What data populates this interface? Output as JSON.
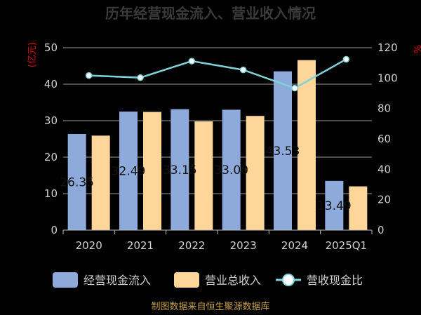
{
  "header": {
    "title": "历年经营现金流入、营业收入情况"
  },
  "footer": {
    "source": "制图数据来自恒生聚源数据库"
  },
  "chart_data": {
    "type": "bar",
    "title": "历年经营现金流入、营业收入情况",
    "categories": [
      "2020",
      "2021",
      "2022",
      "2023",
      "2024",
      "2025Q1"
    ],
    "series": [
      {
        "name": "经营现金流入",
        "type": "bar",
        "axis": "left",
        "color": "#8eaadb",
        "values": [
          26.35,
          32.49,
          33.15,
          33.0,
          43.53,
          13.49
        ]
      },
      {
        "name": "营业总收入",
        "type": "bar",
        "axis": "left",
        "color": "#ffd699",
        "values": [
          25.9,
          32.4,
          29.8,
          31.3,
          46.6,
          12.0
        ]
      },
      {
        "name": "营收现金比",
        "type": "line",
        "axis": "right",
        "color": "#7fd3d8",
        "values": [
          101.7,
          100.3,
          111.2,
          105.4,
          93.4,
          112.4
        ]
      }
    ],
    "data_labels": [
      "26.35",
      "32.49",
      "33.15",
      "33.00",
      "43.53",
      "13.49"
    ],
    "y_left": {
      "label": "(亿元)",
      "range": [
        0,
        50
      ],
      "ticks": [
        "0",
        "10",
        "20",
        "30",
        "40",
        "50"
      ]
    },
    "y_right": {
      "label": "%",
      "range": [
        0,
        120
      ],
      "ticks": [
        "0",
        "20",
        "40",
        "60",
        "80",
        "100",
        "120"
      ]
    },
    "grid": true,
    "legend": "bottom"
  }
}
